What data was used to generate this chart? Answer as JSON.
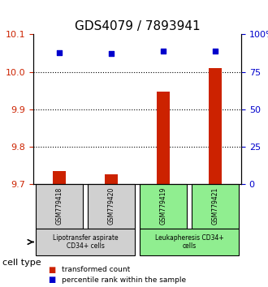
{
  "title": "GDS4079 / 7893941",
  "samples": [
    "GSM779418",
    "GSM779420",
    "GSM779419",
    "GSM779421"
  ],
  "bar_values": [
    9.735,
    9.725,
    9.947,
    10.01
  ],
  "percentile_values": [
    88,
    87,
    89,
    89
  ],
  "ylim_left": [
    9.7,
    10.1
  ],
  "yticks_left": [
    9.7,
    9.8,
    9.9,
    10.0,
    10.1
  ],
  "yticks_right": [
    0,
    25,
    50,
    75,
    100
  ],
  "bar_color": "#cc2200",
  "dot_color": "#0000cc",
  "bar_bottom": 9.7,
  "groups": [
    {
      "label": "Lipotransfer aspirate\nCD34+ cells",
      "indices": [
        0,
        1
      ],
      "color": "#d0d0d0"
    },
    {
      "label": "Leukapheresis CD34+\ncells",
      "indices": [
        2,
        3
      ],
      "color": "#90ee90"
    }
  ],
  "cell_type_label": "cell type",
  "legend_bar_label": "transformed count",
  "legend_dot_label": "percentile rank within the sample",
  "title_fontsize": 11,
  "axis_label_color_left": "#cc2200",
  "axis_label_color_right": "#0000cc"
}
